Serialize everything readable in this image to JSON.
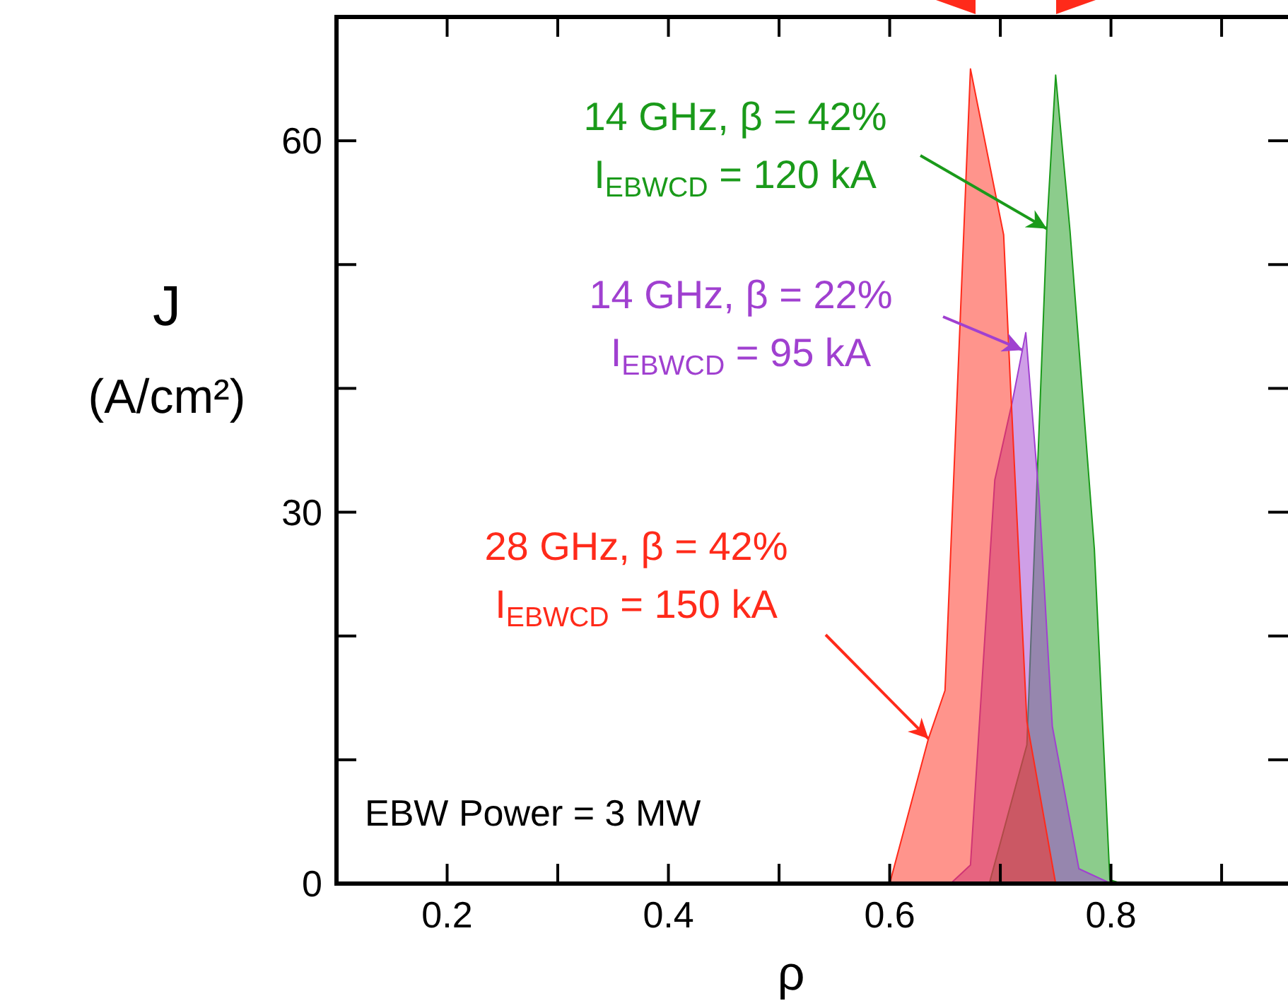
{
  "chart_data": {
    "type": "area",
    "xlabel": "ρ",
    "ylabel": "J\n(A/cm²)",
    "xlim": [
      0.1,
      0.96
    ],
    "ylim": [
      0,
      70
    ],
    "xticks": [
      0.2,
      {
        "value": 0.3,
        "label": null
      },
      0.4,
      {
        "value": 0.5,
        "label": null
      },
      0.6,
      {
        "value": 0.7,
        "label": null
      },
      0.8,
      {
        "value": 0.9,
        "label": null
      }
    ],
    "yticks": [
      0,
      {
        "value": 10,
        "label": null
      },
      {
        "value": 20,
        "label": null
      },
      30,
      {
        "value": 40,
        "label": null
      },
      {
        "value": 50,
        "label": null
      },
      60
    ],
    "grid": false,
    "series": [
      {
        "color": "#1a9a1a",
        "x": [
          0.69,
          0.724,
          0.742,
          0.75,
          0.763,
          0.785,
          0.799,
          0.81
        ],
        "values": [
          0,
          11.2,
          52.9,
          65.3,
          52.7,
          27,
          0.3,
          0
        ]
      },
      {
        "color": "#a040d0",
        "x": [
          0.655,
          0.673,
          0.695,
          0.711,
          0.723,
          0.735,
          0.747,
          0.771,
          0.8
        ],
        "values": [
          0,
          1.5,
          32.6,
          39,
          44.5,
          31.2,
          12.7,
          1.2,
          0
        ]
      },
      {
        "color": "#ff2a1a",
        "x": [
          0.6,
          0.635,
          0.65,
          0.667,
          0.673,
          0.703,
          0.709,
          0.724,
          0.75
        ],
        "values": [
          0,
          11.7,
          15.6,
          52.7,
          65.8,
          52.4,
          40.6,
          13.1,
          0
        ]
      }
    ],
    "annotations": [
      {
        "text": "14 GHz, β = 42%\nI$_{EBWCD}$ = 120 kA",
        "x": 0.742,
        "y": 52.9
      },
      {
        "text": "14 GHz, β = 22%\nI$_{EBWCD}$ = 95 kA",
        "x": 0.72,
        "y": 43.1
      },
      {
        "text": "28 GHz, β = 42%\nI$_{EBWCD}$ = 150 kA",
        "x": 0.635,
        "y": 11.7
      },
      "EBW Power = 3 MW"
    ]
  }
}
